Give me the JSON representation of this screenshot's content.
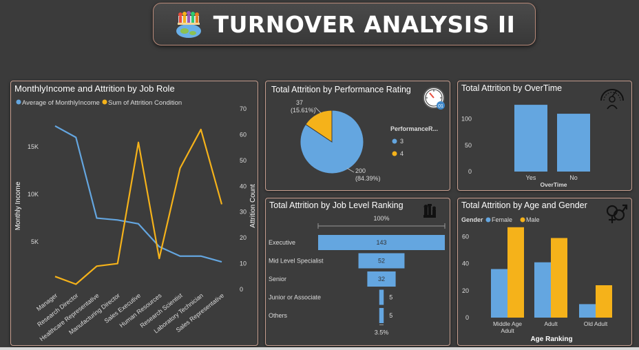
{
  "header": {
    "title": "TURNOVER ANALYSIS II",
    "logo_icon": "office-people-globe-icon"
  },
  "colors": {
    "blue": "#64a6e0",
    "yellow": "#f5b21a",
    "panel_border": "#c79f90",
    "background": "#3b3b3b"
  },
  "panels": {
    "job_role": {
      "title": "MonthlyIncome and Attrition by Job Role",
      "legend": [
        "Average of MonthlyIncome",
        "Sum of Attrition Condition"
      ],
      "ylabel_left": "Monthly Income",
      "ylabel_right": "Attrition Count"
    },
    "performance": {
      "title": "Total Attrition by Performance Rating",
      "legend_title": "PerformanceR...",
      "icon": "gauge-clock-icon"
    },
    "overtime": {
      "title": "Total Attrition by OverTime",
      "xlabel": "OverTime",
      "icon": "speedometer-person-icon"
    },
    "job_level": {
      "title": "Total Attrition by Job Level Ranking",
      "top_pct": "100%",
      "bottom_pct": "3.5%",
      "icon": "chess-pieces-icon"
    },
    "age_gender": {
      "title": "Total Attrition by Age and Gender",
      "legend_title": "Gender",
      "xlabel": "Age Ranking",
      "icon": "gender-symbols-icon"
    }
  },
  "chart_data": [
    {
      "type": "line",
      "title": "MonthlyIncome and Attrition by Job Role",
      "categories": [
        "Manager",
        "Research Director",
        "Healthcare Representative",
        "Manufacturing Director",
        "Sales Executive",
        "Human Resources",
        "Research Scientist",
        "Laboratory Technician",
        "Sales Representative"
      ],
      "series": [
        {
          "name": "Average of MonthlyIncome",
          "axis": "left",
          "color": "#64a6e0",
          "values": [
            17200,
            16000,
            7500,
            7300,
            6900,
            4500,
            3500,
            3500,
            2900
          ]
        },
        {
          "name": "Sum of Attrition Condition",
          "axis": "right",
          "color": "#f5b21a",
          "values": [
            5,
            2,
            9,
            10,
            57,
            12,
            47,
            62,
            33
          ]
        }
      ],
      "y_left": {
        "ticks": [
          5000,
          10000,
          15000
        ],
        "tick_labels": [
          "5K",
          "10K",
          "15K"
        ],
        "range": [
          0,
          19000
        ]
      },
      "y_right": {
        "ticks": [
          0,
          10,
          20,
          30,
          40,
          50,
          60,
          70
        ],
        "range": [
          0,
          70
        ]
      },
      "ylabel": "Monthly Income",
      "y2label": "Attrition Count",
      "legend": "top-left"
    },
    {
      "type": "pie",
      "title": "Total Attrition by Performance Rating",
      "legend_title": "PerformanceR...",
      "slices": [
        {
          "label": "3",
          "value": 200,
          "percent": "(84.39%)",
          "color": "#64a6e0"
        },
        {
          "label": "4",
          "value": 37,
          "percent": "(15.61%)",
          "color": "#f5b21a"
        }
      ],
      "legend": "right"
    },
    {
      "type": "bar",
      "title": "Total Attrition by OverTime",
      "categories": [
        "Yes",
        "No"
      ],
      "values": [
        127,
        110
      ],
      "xlabel": "OverTime",
      "y_ticks": [
        0,
        50,
        100
      ],
      "ylim": [
        0,
        135
      ]
    },
    {
      "type": "bar",
      "subtype": "funnel",
      "title": "Total Attrition by Job Level Ranking",
      "categories": [
        "Executive",
        "Mid Level Specialist",
        "Senior",
        "Junior or Associate",
        "Others"
      ],
      "values": [
        143,
        52,
        32,
        5,
        5
      ],
      "top_percent": "100%",
      "bottom_percent": "3.5%"
    },
    {
      "type": "bar",
      "title": "Total Attrition by Age and Gender",
      "categories": [
        "Middle Age Adult",
        "Adult",
        "Old Adult"
      ],
      "category_lines": [
        [
          "Middle Age",
          "Adult"
        ],
        [
          "Adult"
        ],
        [
          "Old Adult"
        ]
      ],
      "series": [
        {
          "name": "Female",
          "color": "#64a6e0",
          "values": [
            36,
            41,
            10
          ]
        },
        {
          "name": "Male",
          "color": "#f5b21a",
          "values": [
            67,
            59,
            24
          ]
        }
      ],
      "legend_title": "Gender",
      "xlabel": "Age Ranking",
      "y_ticks": [
        0,
        20,
        40,
        60
      ],
      "ylim": [
        0,
        72
      ],
      "legend": "top-left"
    }
  ]
}
